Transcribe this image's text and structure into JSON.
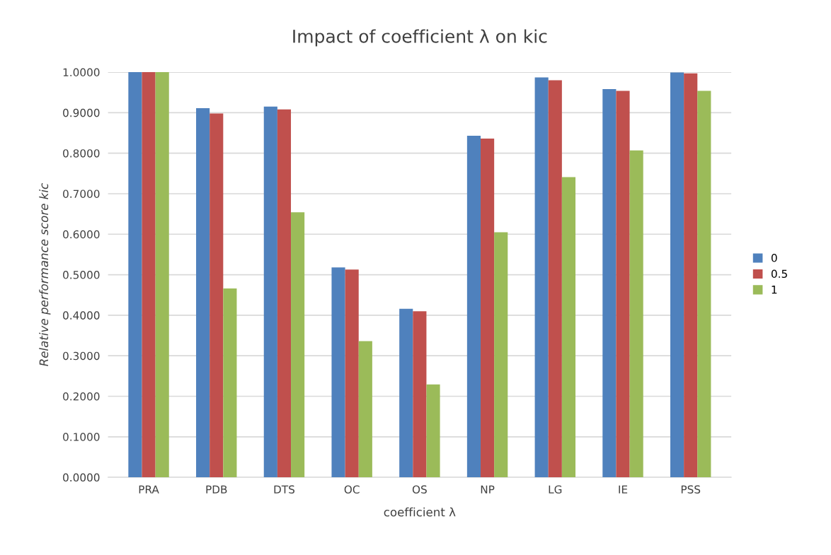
{
  "chart_data": {
    "type": "bar",
    "title": "Impact of coefficient λ on kic",
    "xlabel": "coefficient λ",
    "ylabel": "Relative performance score kic",
    "categories": [
      "PRA",
      "PDB",
      "DTS",
      "OC",
      "OS",
      "NP",
      "LG",
      "IE",
      "PSS"
    ],
    "series": [
      {
        "name": "0",
        "color": "#4f81bd",
        "values": [
          1.0,
          0.911,
          0.915,
          0.518,
          0.416,
          0.843,
          0.987,
          0.958,
          0.999
        ]
      },
      {
        "name": "0.5",
        "color": "#c0504d",
        "values": [
          1.0,
          0.898,
          0.908,
          0.513,
          0.41,
          0.836,
          0.98,
          0.954,
          0.997
        ]
      },
      {
        "name": "1",
        "color": "#9bbb59",
        "values": [
          1.0,
          0.466,
          0.654,
          0.336,
          0.229,
          0.605,
          0.741,
          0.807,
          0.954
        ]
      }
    ],
    "ylim": [
      0,
      1.0
    ],
    "yticks": [
      {
        "value": 0,
        "label": "0.0000"
      },
      {
        "value": 0.1,
        "label": "0.1000"
      },
      {
        "value": 0.2,
        "label": "0.2000"
      },
      {
        "value": 0.3,
        "label": "0.3000"
      },
      {
        "value": 0.4,
        "label": "0.4000"
      },
      {
        "value": 0.5,
        "label": "0.5000"
      },
      {
        "value": 0.6,
        "label": "0.6000"
      },
      {
        "value": 0.7,
        "label": "0.7000"
      },
      {
        "value": 0.8,
        "label": "0.8000"
      },
      {
        "value": 0.9,
        "label": "0.9000"
      },
      {
        "value": 1.0,
        "label": "1.0000"
      }
    ],
    "grid": "y",
    "legend": "right"
  }
}
